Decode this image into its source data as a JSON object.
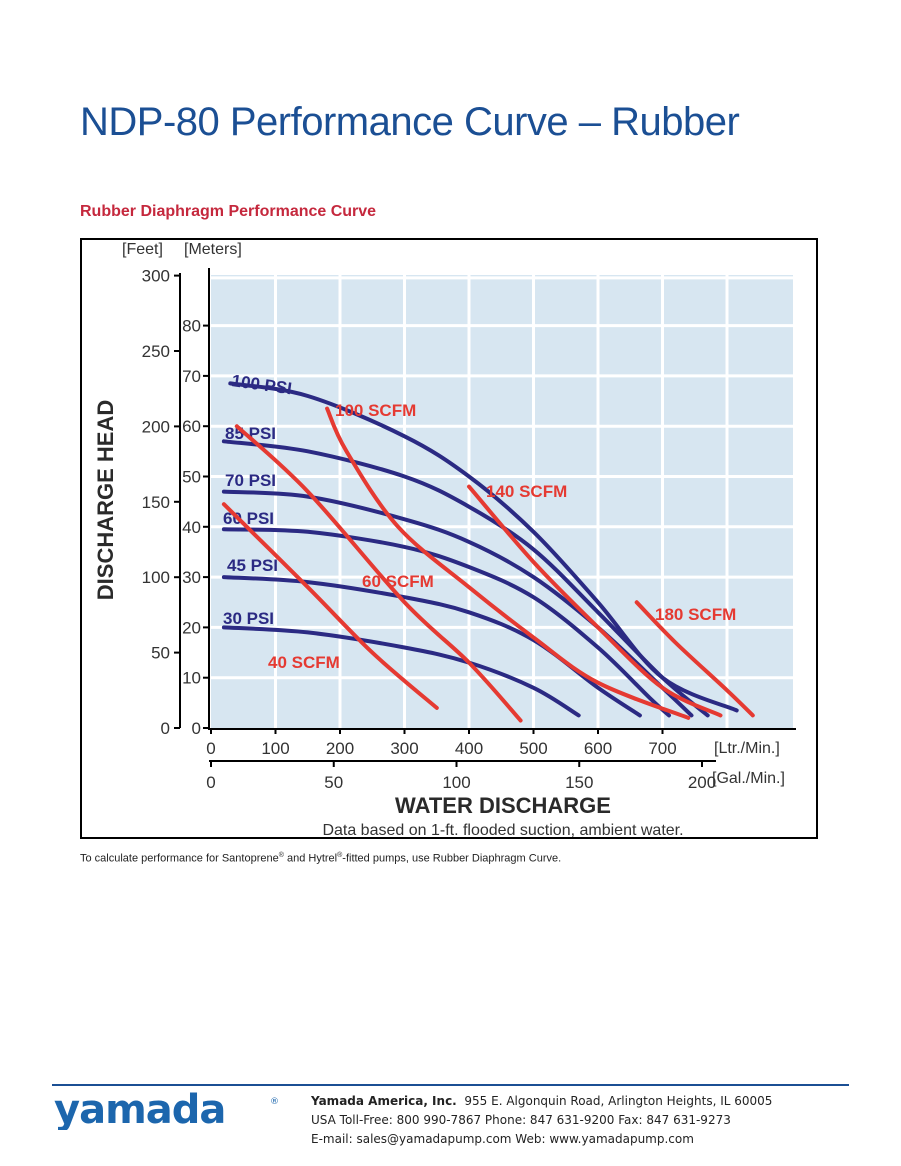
{
  "page": {
    "title": "NDP-80 Performance Curve – Rubber",
    "subtitle": "Rubber Diaphragm Performance Curve",
    "footnote_parts": [
      "To calculate performance for Santoprene",
      "®",
      " and Hytrel",
      "®",
      "-fitted pumps, use Rubber Diaphragm Curve."
    ]
  },
  "footer": {
    "logo_text": "yamada",
    "logo_mark": "®",
    "company": "Yamada America, Inc.",
    "address": "955 E. Algonquin Road, Arlington Heights, IL 60005",
    "phones": "USA Toll-Free: 800 990-7867 Phone: 847 631-9200 Fax: 847 631-9273",
    "email_web": "E-mail: sales@yamadapump.com   Web: www.yamadapump.com"
  },
  "colors": {
    "title": "#1b4f94",
    "subtitle": "#c5283d",
    "psi_curve": "#2b2a83",
    "scfm_curve": "#e53a32",
    "plot_bg": "#d7e6f1",
    "grid": "#ffffff"
  },
  "chart_data": {
    "type": "line",
    "ylabel": "DISCHARGE HEAD",
    "xlabel": "WATER DISCHARGE",
    "note": "Data based on 1-ft. flooded suction, ambient water.",
    "feet_axis": {
      "unit_label": "[Feet]",
      "ticks": [
        "300",
        "250",
        "200",
        "150",
        "100",
        "50",
        "0"
      ],
      "range": [
        0,
        300
      ]
    },
    "meters_axis": {
      "unit_label": "[Meters]",
      "ticks": [
        "80",
        "70",
        "60",
        "50",
        "40",
        "30",
        "20",
        "10",
        "0"
      ],
      "range": [
        0,
        90
      ]
    },
    "lpm_axis": {
      "unit_label": "[Ltr./Min.]",
      "ticks": [
        "0",
        "100",
        "200",
        "300",
        "400",
        "500",
        "600",
        "700"
      ],
      "range": [
        0,
        900
      ]
    },
    "gpm_axis": {
      "unit_label": "[Gal./Min.]",
      "ticks": [
        "0",
        "50",
        "100",
        "150",
        "200"
      ],
      "range": [
        0,
        237.8
      ]
    },
    "grid": true,
    "psi_series": [
      {
        "name": "100 PSI",
        "points": [
          [
            30,
            68.5
          ],
          [
            150,
            66
          ],
          [
            300,
            58
          ],
          [
            400,
            50
          ],
          [
            500,
            39
          ],
          [
            600,
            25
          ],
          [
            700,
            10
          ],
          [
            815,
            3.5
          ]
        ]
      },
      {
        "name": "85 PSI",
        "points": [
          [
            20,
            57
          ],
          [
            150,
            55
          ],
          [
            300,
            50
          ],
          [
            400,
            44
          ],
          [
            500,
            35.5
          ],
          [
            600,
            23
          ],
          [
            700,
            10
          ],
          [
            770,
            2.5
          ]
        ]
      },
      {
        "name": "70 PSI",
        "points": [
          [
            20,
            47
          ],
          [
            150,
            46
          ],
          [
            300,
            41.5
          ],
          [
            400,
            37
          ],
          [
            500,
            30
          ],
          [
            600,
            20
          ],
          [
            700,
            8
          ],
          [
            745,
            2.5
          ]
        ]
      },
      {
        "name": "60 PSI",
        "points": [
          [
            20,
            39.5
          ],
          [
            150,
            39
          ],
          [
            300,
            36
          ],
          [
            400,
            32
          ],
          [
            500,
            26
          ],
          [
            600,
            16
          ],
          [
            680,
            6
          ],
          [
            710,
            2.5
          ]
        ]
      },
      {
        "name": "45 PSI",
        "points": [
          [
            20,
            30
          ],
          [
            150,
            29
          ],
          [
            300,
            26
          ],
          [
            400,
            23
          ],
          [
            500,
            17.5
          ],
          [
            600,
            8
          ],
          [
            665,
            2.5
          ]
        ]
      },
      {
        "name": "30 PSI",
        "points": [
          [
            20,
            20
          ],
          [
            150,
            19
          ],
          [
            300,
            16
          ],
          [
            400,
            13
          ],
          [
            500,
            8
          ],
          [
            570,
            2.5
          ]
        ]
      }
    ],
    "scfm_series": [
      {
        "name": "40 SCFM",
        "points": [
          [
            20,
            44.5
          ],
          [
            150,
            28
          ],
          [
            250,
            15
          ],
          [
            350,
            4
          ]
        ]
      },
      {
        "name": "60 SCFM",
        "points": [
          [
            40,
            60
          ],
          [
            150,
            47
          ],
          [
            300,
            25
          ],
          [
            400,
            13
          ],
          [
            480,
            1.5
          ]
        ]
      },
      {
        "name": "100 SCFM",
        "points": [
          [
            180,
            63.5
          ],
          [
            210,
            55
          ],
          [
            290,
            40
          ],
          [
            400,
            28
          ],
          [
            500,
            18
          ],
          [
            600,
            9
          ],
          [
            740,
            2
          ]
        ]
      },
      {
        "name": "140 SCFM",
        "points": [
          [
            400,
            48
          ],
          [
            500,
            33
          ],
          [
            600,
            20
          ],
          [
            700,
            8
          ],
          [
            790,
            2.5
          ]
        ]
      },
      {
        "name": "180 SCFM",
        "points": [
          [
            660,
            25
          ],
          [
            720,
            17
          ],
          [
            800,
            7.5
          ],
          [
            840,
            2.5
          ]
        ]
      }
    ]
  }
}
